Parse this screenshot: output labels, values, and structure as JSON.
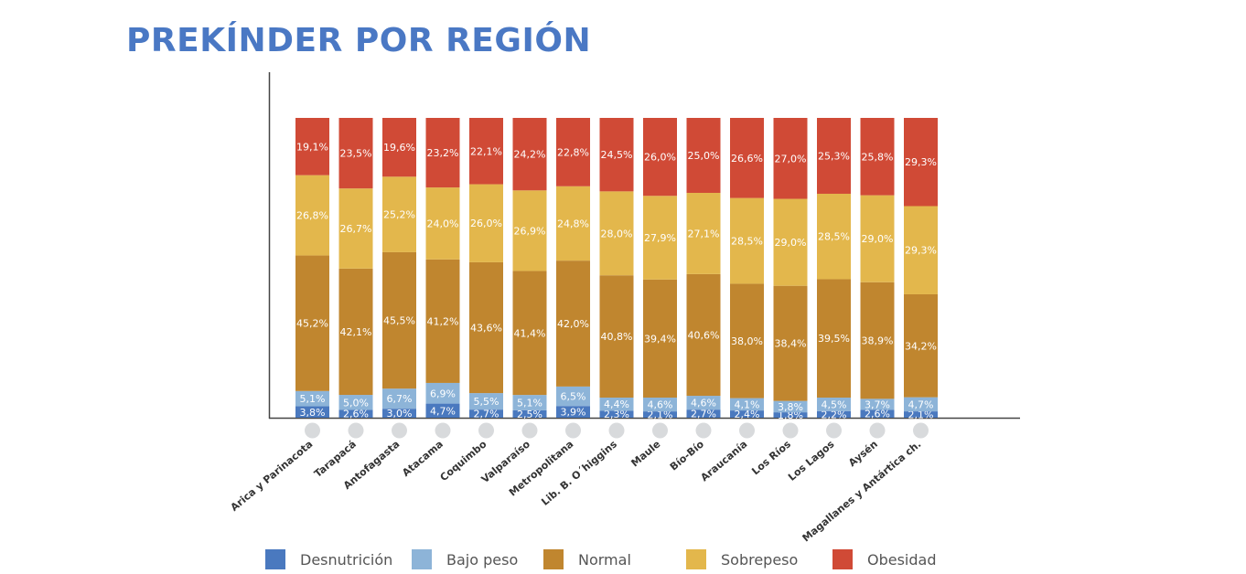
{
  "title": "PREKÍNDER POR REGIÓN",
  "chart_data": {
    "type": "bar",
    "stacked": true,
    "percent_stacked": true,
    "categories": [
      "Arica y Parinacota",
      "Tarapacá",
      "Antofagasta",
      "Atacama",
      "Coquimbo",
      "Valparaíso",
      "Metropolitana",
      "Lib. B. O´higgins",
      "Maule",
      "Bío-Bío",
      "Araucanía",
      "Los Ríos",
      "Los Lagos",
      "Aysén",
      "Magallanes y Antártica ch."
    ],
    "series": [
      {
        "name": "Desnutrición",
        "color": "#4a79bf",
        "values": [
          3.8,
          2.6,
          3.0,
          4.7,
          2.7,
          2.5,
          3.9,
          2.3,
          2.1,
          2.7,
          2.4,
          1.8,
          2.2,
          2.6,
          2.1
        ],
        "labels": [
          "3,8%",
          "2,6%",
          "3,0%",
          "4,7%",
          "2,7%",
          "2,5%",
          "3,9%",
          "2,3%",
          "2,1%",
          "2,7%",
          "2,4%",
          "1,8%",
          "2,2%",
          "2,6%",
          "2,1%"
        ]
      },
      {
        "name": "Bajo peso",
        "color": "#8db4d8",
        "values": [
          5.1,
          5.0,
          6.7,
          6.9,
          5.5,
          5.1,
          6.5,
          4.4,
          4.6,
          4.6,
          4.1,
          3.8,
          4.5,
          3.7,
          4.7
        ],
        "labels": [
          "5,1%",
          "5,0%",
          "6,7%",
          "6,9%",
          "5,5%",
          "5,1%",
          "6,5%",
          "4,4%",
          "4,6%",
          "4,6%",
          "4,1%",
          "3,8%",
          "4,5%",
          "3,7%",
          "4,7%"
        ]
      },
      {
        "name": "Normal",
        "color": "#c0862f",
        "values": [
          45.2,
          42.1,
          45.5,
          41.2,
          43.6,
          41.4,
          42.0,
          40.8,
          39.4,
          40.6,
          38.0,
          38.4,
          39.5,
          38.9,
          34.2
        ],
        "labels": [
          "45,2%",
          "42,1%",
          "45,5%",
          "41,2%",
          "43,6%",
          "41,4%",
          "42,0%",
          "40,8%",
          "39,4%",
          "40,6%",
          "38,0%",
          "38,4%",
          "39,5%",
          "38,9%",
          "34,2%"
        ]
      },
      {
        "name": "Sobrepeso",
        "color": "#e3b74c",
        "values": [
          26.8,
          26.7,
          25.2,
          24.0,
          26.0,
          26.9,
          24.8,
          28.0,
          27.9,
          27.1,
          28.5,
          29.0,
          28.5,
          29.0,
          29.3
        ],
        "labels": [
          "26,8%",
          "26,7%",
          "25,2%",
          "24,0%",
          "26,0%",
          "26,9%",
          "24,8%",
          "28,0%",
          "27,9%",
          "27,1%",
          "28,5%",
          "29,0%",
          "28,5%",
          "29,0%",
          "29,3%"
        ]
      },
      {
        "name": "Obesidad",
        "color": "#d04a36",
        "values": [
          19.1,
          23.5,
          19.6,
          23.2,
          22.1,
          24.2,
          22.8,
          24.5,
          26.0,
          25.0,
          26.6,
          27.0,
          25.3,
          25.8,
          29.3
        ],
        "labels": [
          "19,1%",
          "23,5%",
          "19,6%",
          "23,2%",
          "22,1%",
          "24,2%",
          "22,8%",
          "24,5%",
          "26,0%",
          "25,0%",
          "26,6%",
          "27,0%",
          "25,3%",
          "25,8%",
          "29,3%"
        ]
      }
    ],
    "xlabel": "",
    "ylabel": "",
    "ylim": [
      0,
      100
    ],
    "grid": false,
    "legend_position": "bottom",
    "colors": {
      "axis": "#444444",
      "marker": "#d8dadc",
      "title": "#4a78c4"
    }
  }
}
